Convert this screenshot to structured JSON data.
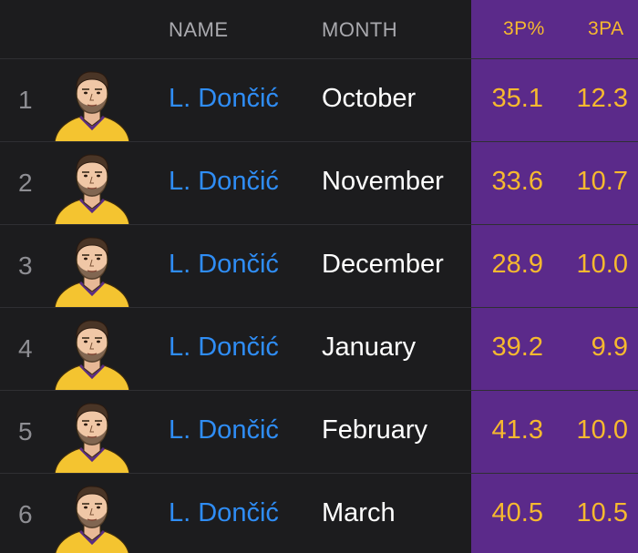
{
  "header": {
    "name": "NAME",
    "month": "MONTH",
    "three_pt_pct": "3P%",
    "three_pt_att": "3PA"
  },
  "colors": {
    "background": "#1c1c1e",
    "stat_column_bg": "#5b2a8a",
    "stat_text": "#f6b92f",
    "player_link": "#2f8df5",
    "rank_text": "#8e8e93"
  },
  "rows": [
    {
      "rank": "1",
      "player": "L. Dončić",
      "month": "October",
      "three_pt_pct": "35.1",
      "three_pt_att": "12.3"
    },
    {
      "rank": "2",
      "player": "L. Dončić",
      "month": "November",
      "three_pt_pct": "33.6",
      "three_pt_att": "10.7"
    },
    {
      "rank": "3",
      "player": "L. Dončić",
      "month": "December",
      "three_pt_pct": "28.9",
      "three_pt_att": "10.0"
    },
    {
      "rank": "4",
      "player": "L. Dončić",
      "month": "January",
      "three_pt_pct": "39.2",
      "three_pt_att": "9.9"
    },
    {
      "rank": "5",
      "player": "L. Dončić",
      "month": "February",
      "three_pt_pct": "41.3",
      "three_pt_att": "10.0"
    },
    {
      "rank": "6",
      "player": "L. Dončić",
      "month": "March",
      "three_pt_pct": "40.5",
      "three_pt_att": "10.5"
    }
  ],
  "avatar_icon": "player-headshot-icon"
}
